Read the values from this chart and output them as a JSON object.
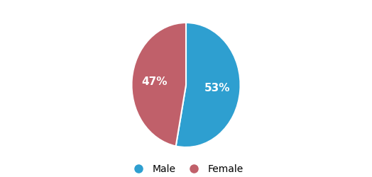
{
  "labels": [
    "Male",
    "Female"
  ],
  "values": [
    53,
    47
  ],
  "colors": [
    "#2E9FD0",
    "#C0606A"
  ],
  "pct_labels": [
    "53%",
    "47%"
  ],
  "legend_colors": [
    "#2E9FD0",
    "#C0606A"
  ],
  "background_color": "#ffffff",
  "label_fontsize": 11,
  "legend_fontsize": 10,
  "startangle": 90
}
